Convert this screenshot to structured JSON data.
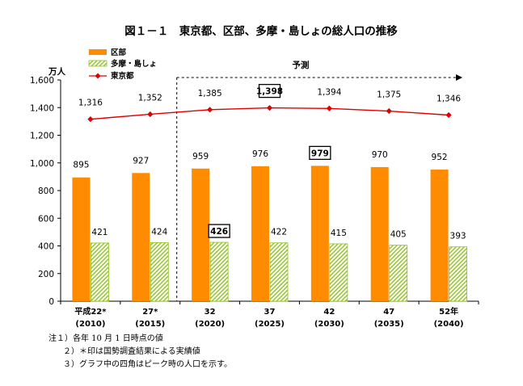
{
  "chart_data": {
    "type": "bar",
    "title": "図１－１　東京都、区部、多摩・島しょの総人口の推移",
    "ylabel": "万人",
    "ylim": [
      0,
      1600
    ],
    "yticks": [
      "0",
      "200",
      "400",
      "600",
      "800",
      "1,000",
      "1,200",
      "1,400",
      "1,600"
    ],
    "categories": [
      {
        "top": "平成22*",
        "bottom": "(2010)"
      },
      {
        "top": "27*",
        "bottom": "(2015)"
      },
      {
        "top": "32",
        "bottom": "(2020)"
      },
      {
        "top": "37",
        "bottom": "(2025)"
      },
      {
        "top": "42",
        "bottom": "(2030)"
      },
      {
        "top": "47",
        "bottom": "(2035)"
      },
      {
        "top": "52年",
        "bottom": "(2040)"
      }
    ],
    "series": [
      {
        "name": "区部",
        "type": "bar",
        "color": "#FF8C00",
        "values": [
          895,
          927,
          959,
          976,
          979,
          970,
          952
        ],
        "labels": [
          "895",
          "927",
          "959",
          "976",
          "979",
          "970",
          "952"
        ],
        "peak_index": 4
      },
      {
        "name": "多摩・島しょ",
        "type": "bar",
        "pattern": "green-hatch",
        "color": "#9ACD32",
        "values": [
          421,
          424,
          426,
          422,
          415,
          405,
          393
        ],
        "labels": [
          "421",
          "424",
          "426",
          "422",
          "415",
          "405",
          "393"
        ],
        "peak_index": 2
      },
      {
        "name": "東京都",
        "type": "line",
        "marker": "diamond",
        "color": "#E00000",
        "values": [
          1316,
          1352,
          1385,
          1398,
          1394,
          1375,
          1346
        ],
        "labels": [
          "1,316",
          "1,352",
          "1,385",
          "1,398",
          "1,394",
          "1,375",
          "1,346"
        ],
        "peak_index": 3
      }
    ],
    "forecast": {
      "label": "予測",
      "start_index": 2
    },
    "legend_placement": "top-left",
    "grid": false
  },
  "notes": [
    "注１）各年 10 月 1 日時点の値",
    "２）＊印は国勢調査結果による実績値",
    "３）グラフ中の四角はピーク時の人口を示す。"
  ]
}
